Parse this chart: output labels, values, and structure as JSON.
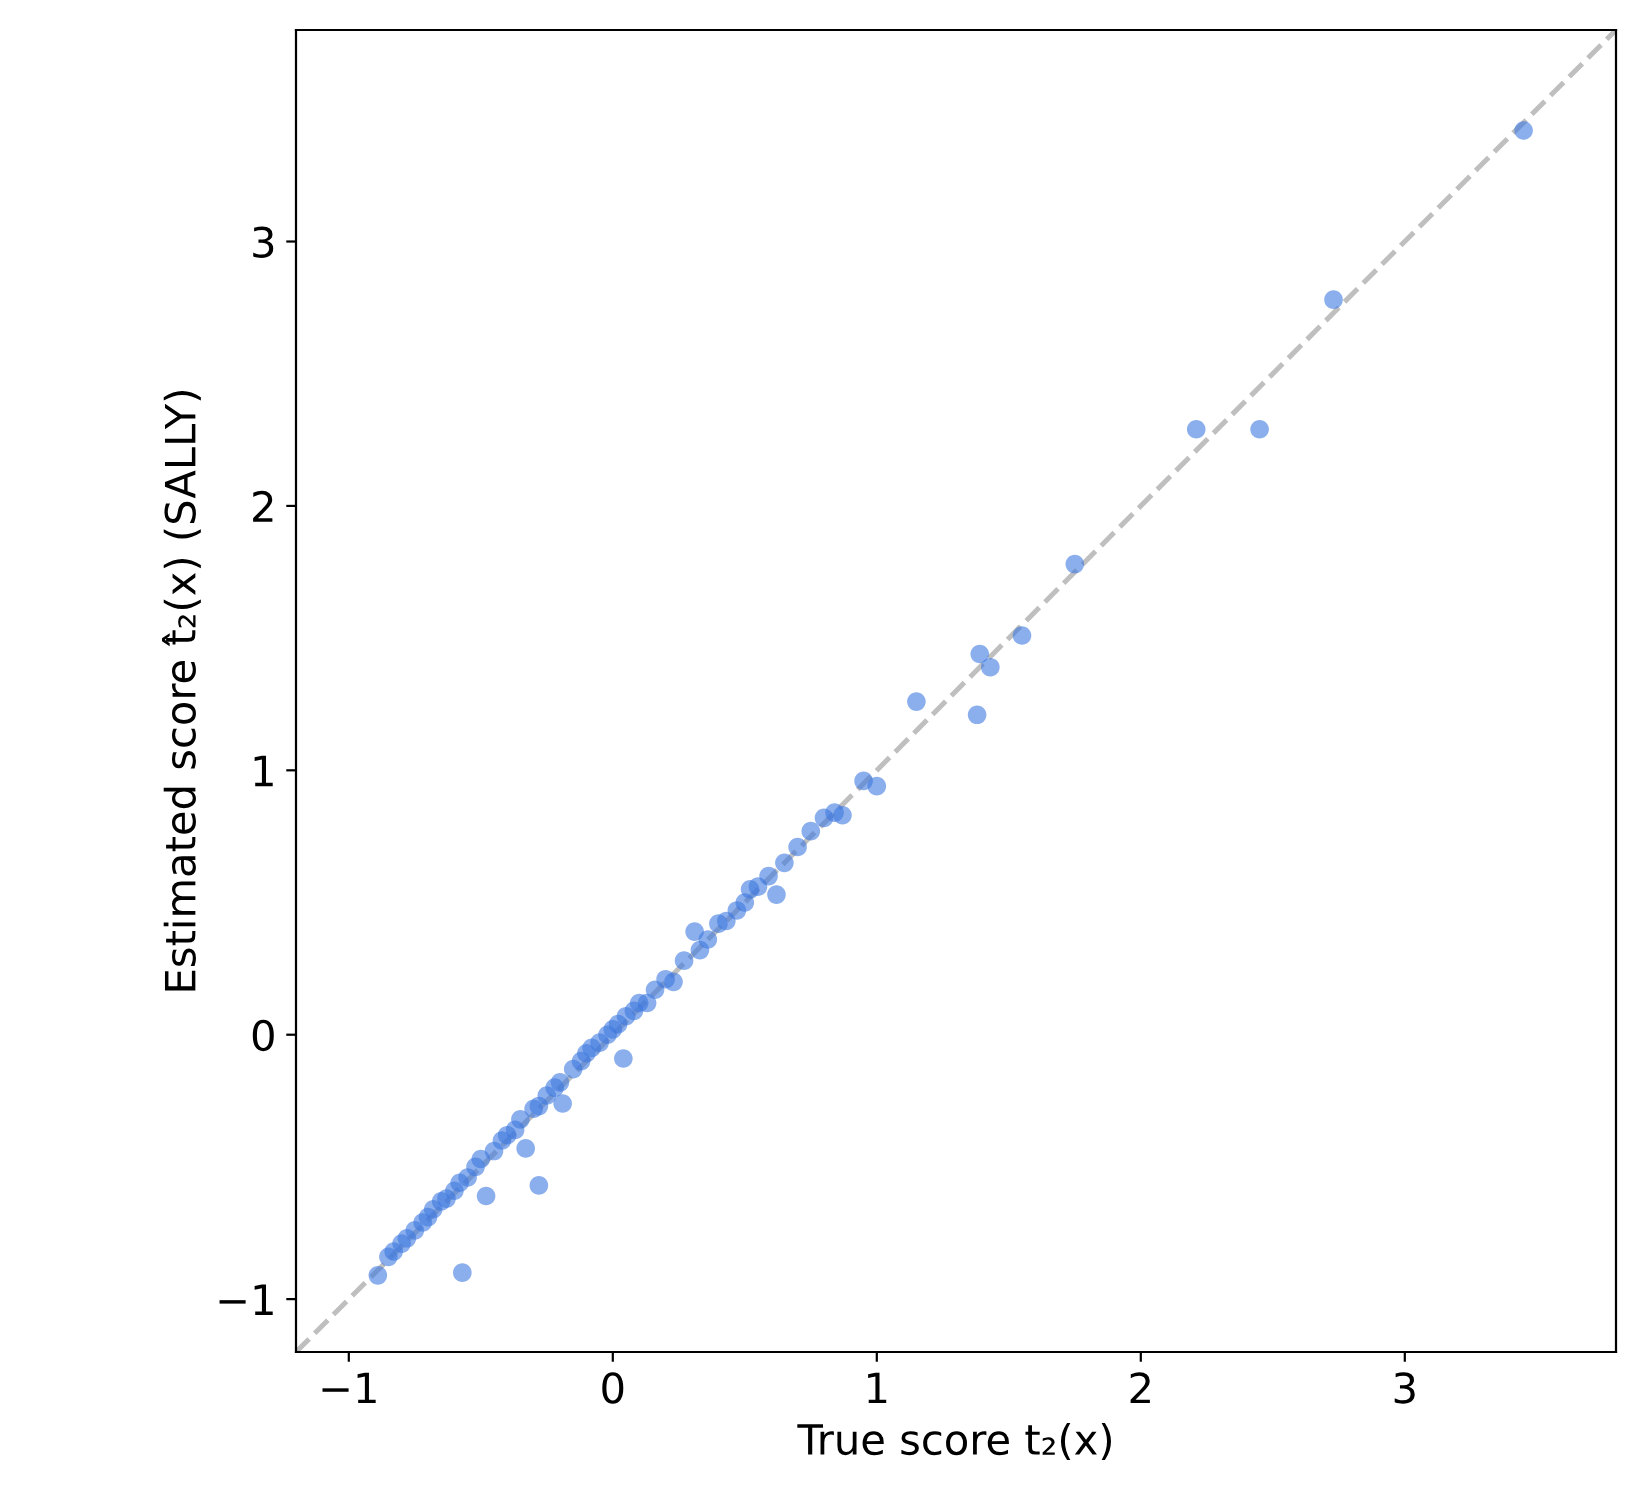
{
  "chart_data": {
    "type": "scatter",
    "xlabel": "True score t₂(x)",
    "ylabel": "Estimated score t̂₂(x) (SALLY)",
    "xlim": [
      -1.2,
      3.8
    ],
    "ylim": [
      -1.2,
      3.8
    ],
    "xticks": [
      {
        "value": -1,
        "label": "−1"
      },
      0,
      1,
      2,
      3
    ],
    "yticks": [
      {
        "value": -1,
        "label": "−1"
      },
      0,
      1,
      2,
      3
    ],
    "grid": false,
    "marker": "circle",
    "series": [
      {
        "type": "line",
        "color": "#bfbfbf",
        "line_style": "dashed",
        "marker": "none",
        "x": [
          -1.2,
          3.8
        ],
        "values": [
          -1.2,
          3.8
        ]
      },
      {
        "color": "#3d78e0",
        "x": [
          -0.89,
          -0.85,
          -0.83,
          -0.8,
          -0.78,
          -0.75,
          -0.72,
          -0.7,
          -0.68,
          -0.65,
          -0.63,
          -0.6,
          -0.58,
          -0.55,
          -0.52,
          -0.5,
          -0.48,
          -0.45,
          -0.42,
          -0.4,
          -0.37,
          -0.35,
          -0.33,
          -0.3,
          -0.28,
          -0.25,
          -0.22,
          -0.2,
          -0.19,
          -0.15,
          -0.12,
          -0.1,
          -0.08,
          -0.05,
          -0.02,
          0.0,
          0.02,
          0.04,
          0.05,
          0.08,
          0.1,
          0.13,
          0.16,
          0.2,
          0.23,
          0.27,
          0.31,
          0.33,
          0.36,
          0.4,
          0.43,
          0.47,
          0.5,
          0.52,
          0.55,
          0.59,
          0.62,
          0.65,
          0.7,
          0.75,
          0.8,
          0.84,
          0.87,
          0.95,
          1.0,
          1.15,
          1.38,
          1.39,
          1.43,
          1.55,
          1.75,
          2.21,
          2.45,
          2.73,
          3.45,
          -0.57,
          -0.28
        ],
        "values": [
          -0.91,
          -0.84,
          -0.82,
          -0.79,
          -0.77,
          -0.74,
          -0.71,
          -0.69,
          -0.66,
          -0.63,
          -0.62,
          -0.59,
          -0.56,
          -0.54,
          -0.5,
          -0.47,
          -0.61,
          -0.44,
          -0.4,
          -0.38,
          -0.36,
          -0.32,
          -0.43,
          -0.28,
          -0.27,
          -0.23,
          -0.2,
          -0.18,
          -0.26,
          -0.13,
          -0.1,
          -0.07,
          -0.05,
          -0.03,
          0.0,
          0.02,
          0.04,
          -0.09,
          0.07,
          0.09,
          0.12,
          0.12,
          0.17,
          0.21,
          0.2,
          0.28,
          0.39,
          0.32,
          0.36,
          0.42,
          0.43,
          0.47,
          0.5,
          0.55,
          0.56,
          0.6,
          0.53,
          0.65,
          0.71,
          0.77,
          0.82,
          0.84,
          0.83,
          0.96,
          0.94,
          1.26,
          1.21,
          1.44,
          1.39,
          1.51,
          1.78,
          2.29,
          2.29,
          2.78,
          3.42,
          -0.9,
          -0.57
        ]
      }
    ]
  }
}
